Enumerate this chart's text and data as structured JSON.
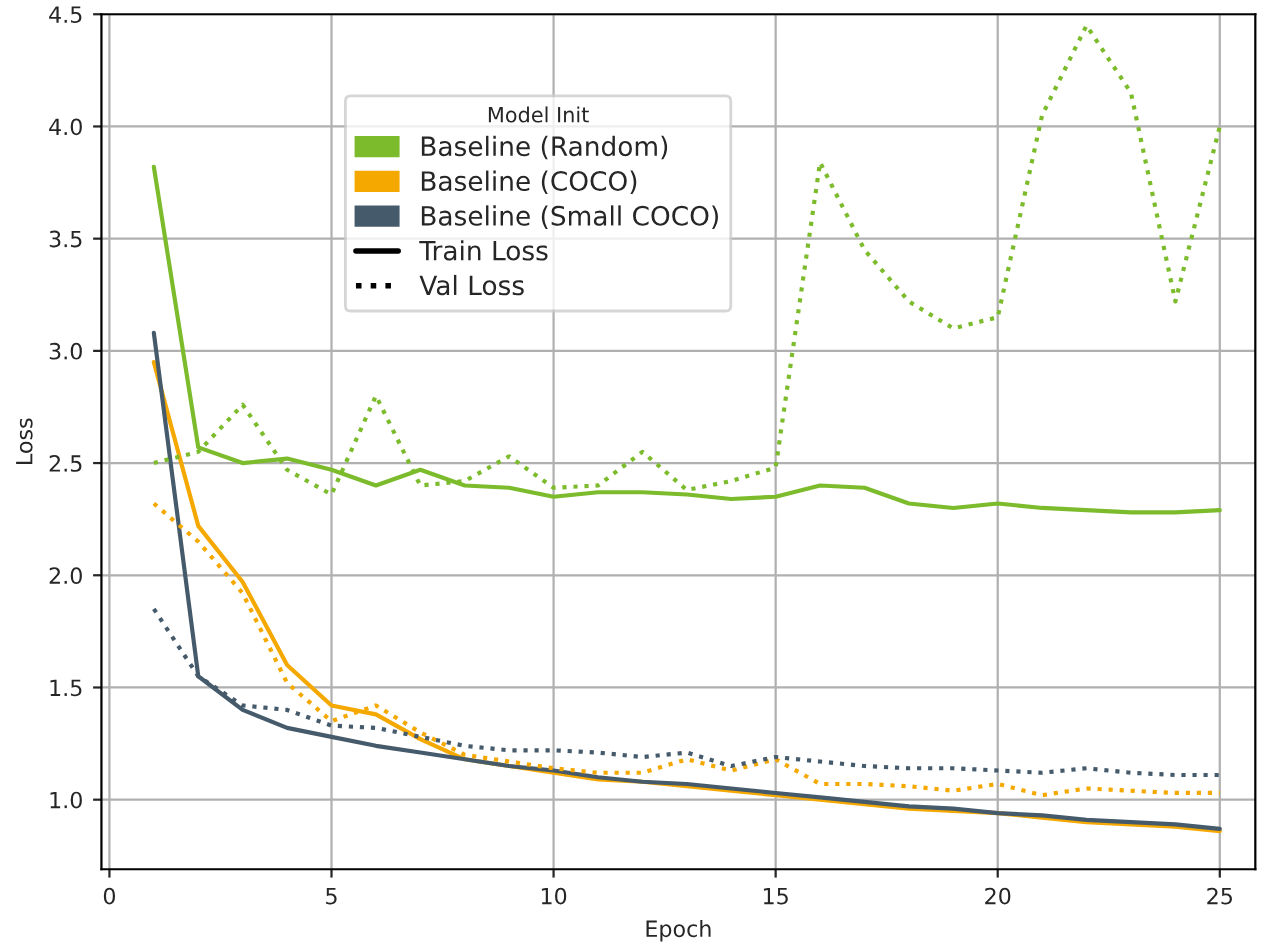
{
  "chart_data": {
    "type": "line",
    "xlabel": "Epoch",
    "ylabel": "Loss",
    "legend_title": "Model Init",
    "x": [
      1,
      2,
      3,
      4,
      5,
      6,
      7,
      8,
      9,
      10,
      11,
      12,
      13,
      14,
      15,
      16,
      17,
      18,
      19,
      20,
      21,
      22,
      23,
      24,
      25
    ],
    "series": [
      {
        "name": "Baseline (Random)",
        "color": "#7cbc2c",
        "line_style": "solid",
        "values": [
          3.82,
          2.57,
          2.5,
          2.52,
          2.47,
          2.4,
          2.47,
          2.4,
          2.39,
          2.35,
          2.37,
          2.37,
          2.36,
          2.34,
          2.35,
          2.4,
          2.39,
          2.32,
          2.3,
          2.32,
          2.3,
          2.29,
          2.28,
          2.28,
          2.29
        ]
      },
      {
        "name": "Baseline (COCO)",
        "color": "#f5a800",
        "line_style": "solid",
        "values": [
          2.95,
          2.22,
          1.97,
          1.6,
          1.42,
          1.38,
          1.27,
          1.18,
          1.15,
          1.12,
          1.09,
          1.08,
          1.06,
          1.04,
          1.02,
          1.0,
          0.98,
          0.96,
          0.95,
          0.94,
          0.92,
          0.9,
          0.89,
          0.88,
          0.86
        ]
      },
      {
        "name": "Baseline (Small COCO)",
        "color": "#455a6a",
        "line_style": "solid",
        "values": [
          3.08,
          1.55,
          1.4,
          1.32,
          1.28,
          1.24,
          1.21,
          1.18,
          1.15,
          1.13,
          1.1,
          1.08,
          1.07,
          1.05,
          1.03,
          1.01,
          0.99,
          0.97,
          0.96,
          0.94,
          0.93,
          0.91,
          0.9,
          0.89,
          0.87
        ]
      },
      {
        "color": "#7cbc2c",
        "line_style": "dotted",
        "values": [
          2.5,
          2.55,
          2.76,
          2.47,
          2.36,
          2.8,
          2.4,
          2.42,
          2.53,
          2.39,
          2.4,
          2.55,
          2.38,
          2.42,
          2.48,
          3.84,
          3.45,
          3.22,
          3.1,
          3.15,
          4.05,
          4.45,
          4.15,
          3.22,
          4.0
        ]
      },
      {
        "color": "#f5a800",
        "line_style": "dotted",
        "values": [
          2.32,
          2.15,
          1.92,
          1.52,
          1.35,
          1.42,
          1.3,
          1.2,
          1.17,
          1.14,
          1.12,
          1.12,
          1.18,
          1.13,
          1.18,
          1.07,
          1.07,
          1.06,
          1.04,
          1.07,
          1.02,
          1.05,
          1.04,
          1.03,
          1.03
        ]
      },
      {
        "color": "#455a6a",
        "line_style": "dotted",
        "values": [
          1.85,
          1.55,
          1.42,
          1.4,
          1.33,
          1.32,
          1.28,
          1.24,
          1.22,
          1.22,
          1.21,
          1.19,
          1.21,
          1.15,
          1.19,
          1.17,
          1.15,
          1.14,
          1.14,
          1.13,
          1.12,
          1.14,
          1.12,
          1.11,
          1.11
        ]
      }
    ],
    "annotations": [
      "Train Loss",
      "Val Loss"
    ],
    "xlim": [
      -0.18,
      25.8
    ],
    "xticks": [
      0,
      5,
      10,
      15,
      20,
      25
    ],
    "ylim": [
      0.69,
      4.5
    ],
    "yticks": [
      {
        "value": 1.0,
        "label": "1.0"
      },
      {
        "value": 1.5,
        "label": "1.5"
      },
      {
        "value": 2.0,
        "label": "2.0"
      },
      {
        "value": 2.5,
        "label": "2.5"
      },
      {
        "value": 3.0,
        "label": "3.0"
      },
      {
        "value": 3.5,
        "label": "3.5"
      },
      {
        "value": 4.0,
        "label": "4.0"
      },
      {
        "value": 4.5,
        "label": "4.5"
      }
    ],
    "grid": true,
    "legend": "top left"
  }
}
